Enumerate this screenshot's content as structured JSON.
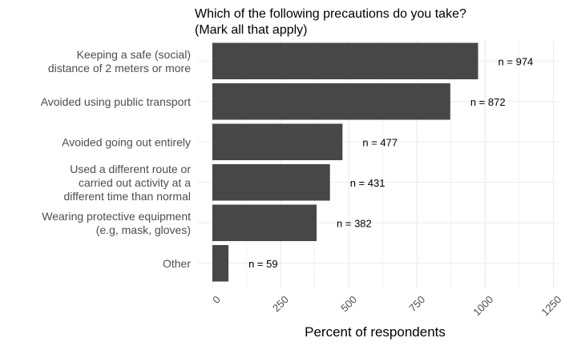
{
  "chart_data": {
    "type": "bar",
    "orientation": "horizontal",
    "title_lines": [
      "Which of the following precautions do you take?",
      "(Mark all that apply)"
    ],
    "xlabel": "Percent of respondents",
    "ylabel": "",
    "xlim": [
      0,
      1250
    ],
    "xticks": [
      0,
      250,
      500,
      750,
      1000,
      1250
    ],
    "xtick_labels": [
      "0",
      "250",
      "500",
      "750",
      "1000",
      "1250"
    ],
    "grid": true,
    "bar_color": "#474747",
    "grid_color": "#ebebeb",
    "categories": [
      [
        "Keeping a safe (social)",
        "distance of 2 meters or more"
      ],
      [
        "Avoided using public transport"
      ],
      [
        "Avoided going out entirely"
      ],
      [
        "Used a different route or",
        "carried out activity at a",
        "different time than normal"
      ],
      [
        "Wearing protective equipment",
        "(e.g, mask, gloves)"
      ],
      [
        "Other"
      ]
    ],
    "values": [
      974,
      872,
      477,
      431,
      382,
      59
    ],
    "bar_labels": [
      "n = 974",
      "n = 872",
      "n = 477",
      "n = 431",
      "n = 382",
      "n = 59"
    ]
  }
}
